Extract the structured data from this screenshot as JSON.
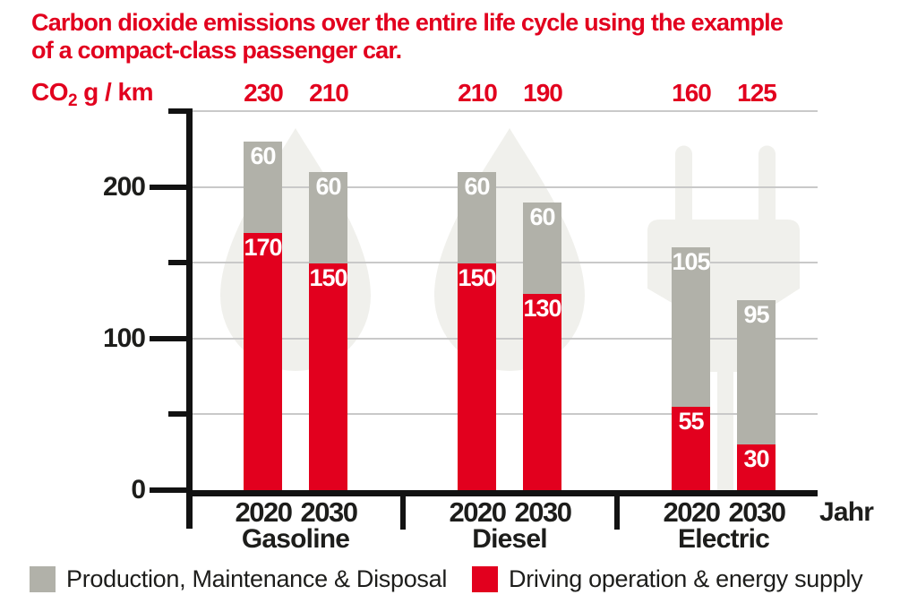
{
  "title_lines": [
    "Carbon dioxide emissions over the entire life cycle using the example",
    "of a compact-class passenger car."
  ],
  "unit_label": {
    "prefix": "CO",
    "sub": "2",
    "suffix": "g / km"
  },
  "chart_data": {
    "type": "bar",
    "stacked": true,
    "title": "Carbon dioxide emissions over the entire life cycle using the example of a compact-class passenger car.",
    "ylabel": "CO2 g/km",
    "xlabel": "Jahr",
    "ylim": [
      0,
      250
    ],
    "ytick_step": 50,
    "yticks_labeled": [
      0,
      100,
      200
    ],
    "yticks_minor": [
      50,
      150,
      250
    ],
    "grid_values": [
      50,
      100,
      150,
      200,
      250
    ],
    "legend_position": "bottom",
    "series": [
      {
        "key": "driving",
        "name": "Driving operation & energy supply",
        "color_key": "accent_red",
        "stack_order": 0
      },
      {
        "key": "production",
        "name": "Production, Maintenance & Disposal",
        "color_key": "bar_gray",
        "stack_order": 1
      }
    ],
    "groups": [
      {
        "label": "Gasoline",
        "watermark": "fuel-drop",
        "bars": [
          {
            "year": "2020",
            "values": {
              "driving": 170,
              "production": 60
            },
            "total": 230
          },
          {
            "year": "2030",
            "values": {
              "driving": 150,
              "production": 60
            },
            "total": 210
          }
        ]
      },
      {
        "label": "Diesel",
        "watermark": "fuel-drop",
        "bars": [
          {
            "year": "2020",
            "values": {
              "driving": 150,
              "production": 60
            },
            "total": 210
          },
          {
            "year": "2030",
            "values": {
              "driving": 130,
              "production": 60
            },
            "total": 190
          }
        ]
      },
      {
        "label": "Electric",
        "watermark": "power-plug",
        "bars": [
          {
            "year": "2020",
            "values": {
              "driving": 55,
              "production": 105
            },
            "total": 160
          },
          {
            "year": "2030",
            "values": {
              "driving": 30,
              "production": 95
            },
            "total": 125
          }
        ]
      }
    ]
  },
  "legend": [
    {
      "label": "Production, Maintenance & Disposal",
      "swatch": "bar_gray"
    },
    {
      "label": "Driving operation & energy supply",
      "swatch": "accent_red"
    }
  ],
  "colors": {
    "accent_red": "#e2001e",
    "bar_gray": "#b1b1a9",
    "watermark_gray": "#f0f0ec",
    "gridline": "#c9c9c9",
    "axis_black": "#121212",
    "text_black": "#1d1d1b",
    "label_white": "#ffffff",
    "background": "#ffffff"
  }
}
